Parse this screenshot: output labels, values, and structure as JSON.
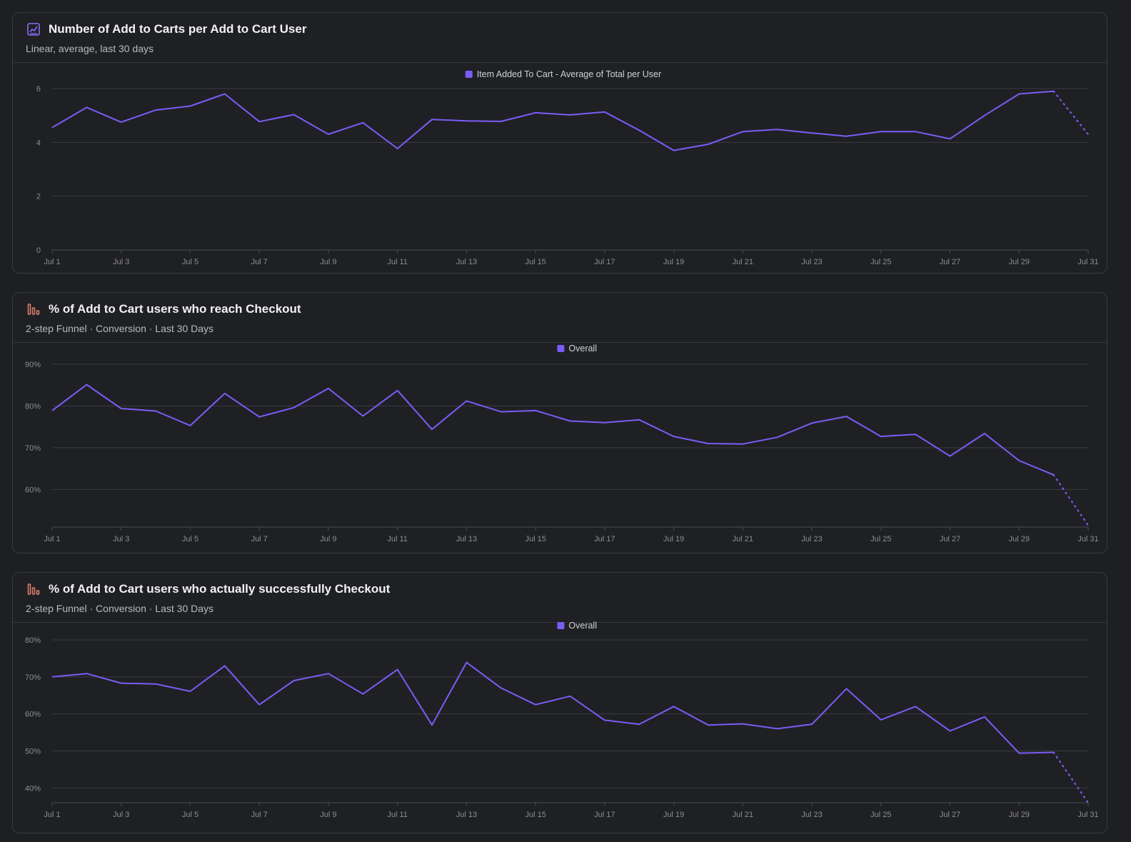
{
  "colors": {
    "series": "#7b5cf5",
    "funnel_icon": "#e0826b",
    "insights_icon": "#8a6cf7"
  },
  "cards": [
    {
      "icon": "line-chart-icon",
      "title": "Number of Add to Carts per Add to Cart User",
      "subtitle": "Linear, average, last 30 days"
    },
    {
      "icon": "funnel-icon",
      "title": "% of Add to Cart users who reach Checkout",
      "subtitle": "2-step Funnel · Conversion · Last 30 Days"
    },
    {
      "icon": "funnel-icon",
      "title": "% of Add to Cart users who actually successfully Checkout",
      "subtitle": "2-step Funnel · Conversion · Last 30 Days"
    }
  ],
  "chart_data": [
    {
      "type": "line",
      "title": "Number of Add to Carts per Add to Cart User",
      "legend": "Item Added To Cart - Average of Total per User",
      "x": [
        "Jul 1",
        "Jul 2",
        "Jul 3",
        "Jul 4",
        "Jul 5",
        "Jul 6",
        "Jul 7",
        "Jul 8",
        "Jul 9",
        "Jul 10",
        "Jul 11",
        "Jul 12",
        "Jul 13",
        "Jul 14",
        "Jul 15",
        "Jul 16",
        "Jul 17",
        "Jul 18",
        "Jul 19",
        "Jul 20",
        "Jul 21",
        "Jul 22",
        "Jul 23",
        "Jul 24",
        "Jul 25",
        "Jul 26",
        "Jul 27",
        "Jul 28",
        "Jul 29",
        "Jul 30",
        "Jul 31"
      ],
      "x_tick_labels": [
        "Jul 1",
        "Jul 3",
        "Jul 5",
        "Jul 7",
        "Jul 9",
        "Jul 11",
        "Jul 13",
        "Jul 15",
        "Jul 17",
        "Jul 19",
        "Jul 21",
        "Jul 23",
        "Jul 25",
        "Jul 27",
        "Jul 29",
        "Jul 31"
      ],
      "values": [
        4.55,
        5.3,
        4.75,
        5.2,
        5.35,
        5.8,
        4.77,
        5.03,
        4.3,
        4.73,
        3.77,
        4.85,
        4.8,
        4.78,
        5.1,
        5.02,
        5.13,
        4.45,
        3.7,
        3.93,
        4.4,
        4.48,
        4.35,
        4.23,
        4.4,
        4.4,
        4.13,
        5.0,
        5.8,
        5.9,
        4.3
      ],
      "dotted_last_segment": true,
      "ylim": [
        0,
        6
      ],
      "y_ticks": [
        0,
        2,
        4,
        6
      ],
      "y_tick_labels": [
        "0",
        "2",
        "4",
        "6"
      ]
    },
    {
      "type": "line",
      "title": "% of Add to Cart users who reach Checkout",
      "legend": "Overall",
      "x": [
        "Jul 1",
        "Jul 2",
        "Jul 3",
        "Jul 4",
        "Jul 5",
        "Jul 6",
        "Jul 7",
        "Jul 8",
        "Jul 9",
        "Jul 10",
        "Jul 11",
        "Jul 12",
        "Jul 13",
        "Jul 14",
        "Jul 15",
        "Jul 16",
        "Jul 17",
        "Jul 18",
        "Jul 19",
        "Jul 20",
        "Jul 21",
        "Jul 22",
        "Jul 23",
        "Jul 24",
        "Jul 25",
        "Jul 26",
        "Jul 27",
        "Jul 28",
        "Jul 29",
        "Jul 30",
        "Jul 31"
      ],
      "x_tick_labels": [
        "Jul 1",
        "Jul 3",
        "Jul 5",
        "Jul 7",
        "Jul 9",
        "Jul 11",
        "Jul 13",
        "Jul 15",
        "Jul 17",
        "Jul 19",
        "Jul 21",
        "Jul 23",
        "Jul 25",
        "Jul 27",
        "Jul 29",
        "Jul 31"
      ],
      "values": [
        78.9,
        85.1,
        79.4,
        78.8,
        75.3,
        83.0,
        77.4,
        79.6,
        84.2,
        77.6,
        83.7,
        74.4,
        81.2,
        78.6,
        78.9,
        76.4,
        76.0,
        76.7,
        72.7,
        71.0,
        70.9,
        72.5,
        75.9,
        77.5,
        72.7,
        73.2,
        68.0,
        73.4,
        66.9,
        63.5,
        51.4
      ],
      "dotted_last_segment": true,
      "ylim": [
        51,
        90
      ],
      "y_ticks": [
        60,
        70,
        80,
        90
      ],
      "y_tick_labels": [
        "60%",
        "70%",
        "80%",
        "90%"
      ]
    },
    {
      "type": "line",
      "title": "% of Add to Cart users who actually successfully Checkout",
      "legend": "Overall",
      "x": [
        "Jul 1",
        "Jul 2",
        "Jul 3",
        "Jul 4",
        "Jul 5",
        "Jul 6",
        "Jul 7",
        "Jul 8",
        "Jul 9",
        "Jul 10",
        "Jul 11",
        "Jul 12",
        "Jul 13",
        "Jul 14",
        "Jul 15",
        "Jul 16",
        "Jul 17",
        "Jul 18",
        "Jul 19",
        "Jul 20",
        "Jul 21",
        "Jul 22",
        "Jul 23",
        "Jul 24",
        "Jul 25",
        "Jul 26",
        "Jul 27",
        "Jul 28",
        "Jul 29",
        "Jul 30",
        "Jul 31"
      ],
      "x_tick_labels": [
        "Jul 1",
        "Jul 3",
        "Jul 5",
        "Jul 7",
        "Jul 9",
        "Jul 11",
        "Jul 13",
        "Jul 15",
        "Jul 17",
        "Jul 19",
        "Jul 21",
        "Jul 23",
        "Jul 25",
        "Jul 27",
        "Jul 29",
        "Jul 31"
      ],
      "values": [
        70.0,
        70.9,
        68.3,
        68.1,
        66.1,
        73.0,
        62.5,
        69.0,
        70.9,
        65.4,
        72.0,
        57.0,
        73.9,
        67.0,
        62.5,
        64.8,
        58.3,
        57.2,
        62.0,
        57.0,
        57.3,
        56.0,
        57.2,
        66.8,
        58.4,
        62.0,
        55.4,
        59.2,
        49.4,
        49.6,
        36.0
      ],
      "dotted_last_segment": true,
      "ylim": [
        36,
        80
      ],
      "y_ticks": [
        40,
        50,
        60,
        70,
        80
      ],
      "y_tick_labels": [
        "40%",
        "50%",
        "60%",
        "70%",
        "80%"
      ]
    }
  ]
}
